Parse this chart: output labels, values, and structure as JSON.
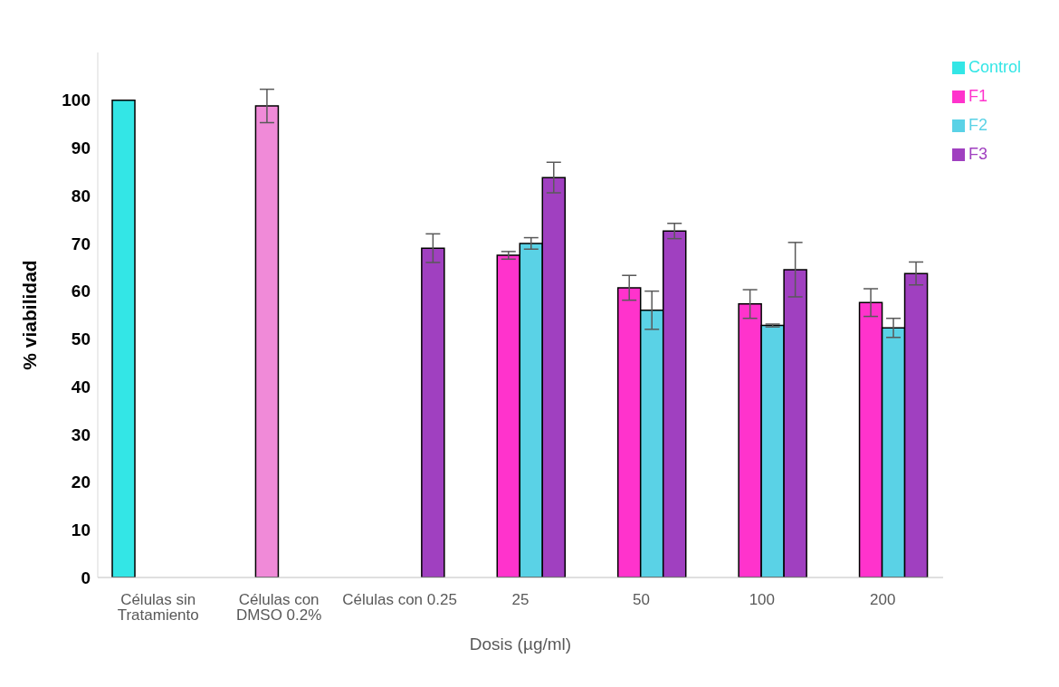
{
  "chart_data": {
    "type": "bar",
    "xlabel": "Dosis (µg/ml)",
    "ylabel": "% viabilidad",
    "categories": [
      "Células sin Tratamiento",
      "Células con DMSO 0.2%",
      "Células con 0.25",
      "25",
      "50",
      "100",
      "200"
    ],
    "series": [
      {
        "name": "Control",
        "color": "#33e6e6",
        "values": [
          100,
          null,
          null,
          null,
          null,
          null,
          null
        ]
      },
      {
        "name": "F1",
        "color": "#ff33cc",
        "colors": [
          null,
          "#f08ad8",
          null,
          "#ff33cc",
          "#ff33cc",
          "#ff33cc",
          "#ff33cc"
        ],
        "values": [
          null,
          98.8,
          null,
          67.5,
          60.7,
          57.3,
          57.6
        ],
        "errors": [
          null,
          3.5,
          null,
          0.8,
          2.6,
          3,
          2.9
        ]
      },
      {
        "name": "F2",
        "color": "#5ad2e6",
        "values": [
          null,
          null,
          null,
          70,
          56,
          52.8,
          52.3
        ],
        "errors": [
          null,
          null,
          null,
          1.2,
          4,
          0.3,
          2
        ]
      },
      {
        "name": "F3",
        "color": "#a040c0",
        "values": [
          null,
          null,
          69,
          83.8,
          72.6,
          64.5,
          63.7
        ],
        "errors": [
          null,
          null,
          3,
          3.2,
          1.6,
          5.7,
          2.4
        ]
      }
    ],
    "ylim": [
      0,
      110
    ],
    "yticks": [
      0,
      10,
      20,
      30,
      40,
      50,
      60,
      70,
      80,
      90,
      100
    ],
    "legend": "top right"
  }
}
